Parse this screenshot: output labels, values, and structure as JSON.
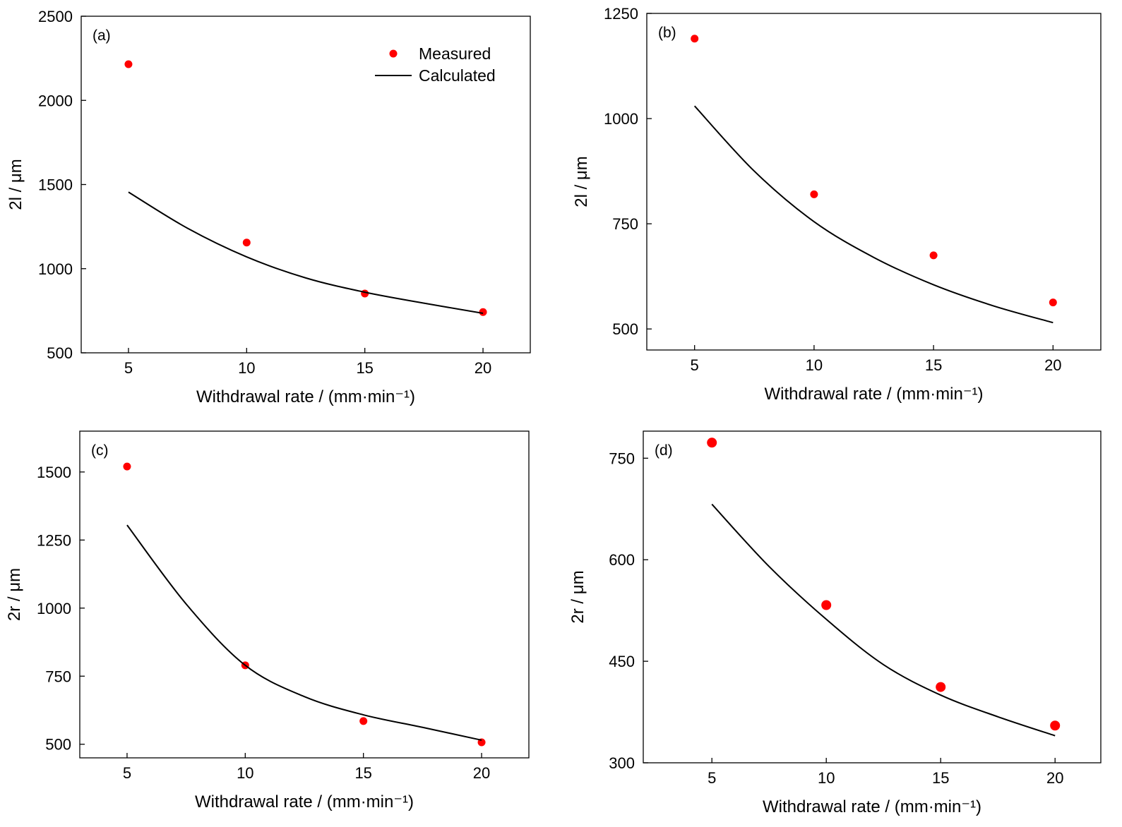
{
  "chart_data": [
    {
      "type": "scatter",
      "panel_label": "(a)",
      "xlabel": "Withdrawal rate / (mm·min⁻¹)",
      "ylabel": "2l / μm",
      "xlim": [
        3,
        22
      ],
      "ylim": [
        500,
        2500
      ],
      "xticks": [
        5,
        10,
        15,
        20
      ],
      "yticks": [
        500,
        1000,
        1500,
        2000,
        2500
      ],
      "legend": {
        "placement": "top-right",
        "entries": [
          "Measured",
          "Calculated"
        ]
      },
      "series": [
        {
          "name": "Measured",
          "style": "points",
          "color": "#ff0000",
          "x": [
            5,
            10,
            15,
            20
          ],
          "y": [
            2215,
            1155,
            852,
            742
          ]
        },
        {
          "name": "Calculated",
          "style": "line",
          "color": "#000000",
          "x": [
            5,
            7.5,
            10,
            12.5,
            15,
            17.5,
            20
          ],
          "y": [
            1455,
            1240,
            1070,
            945,
            860,
            795,
            735
          ]
        }
      ]
    },
    {
      "type": "scatter",
      "panel_label": "(b)",
      "xlabel": "Withdrawal rate / (mm·min⁻¹)",
      "ylabel": "2l / μm",
      "xlim": [
        3,
        22
      ],
      "ylim": [
        450,
        1250
      ],
      "xticks": [
        5,
        10,
        15,
        20
      ],
      "yticks": [
        500,
        750,
        1000,
        1250
      ],
      "series": [
        {
          "name": "Measured",
          "style": "points",
          "color": "#ff0000",
          "x": [
            5,
            10,
            15,
            20
          ],
          "y": [
            1190,
            820,
            675,
            563
          ]
        },
        {
          "name": "Calculated",
          "style": "line",
          "color": "#000000",
          "x": [
            5,
            7.5,
            10,
            12.5,
            15,
            17.5,
            20
          ],
          "y": [
            1030,
            875,
            755,
            670,
            605,
            555,
            515
          ]
        }
      ]
    },
    {
      "type": "scatter",
      "panel_label": "(c)",
      "xlabel": "Withdrawal rate / (mm·min⁻¹)",
      "ylabel": "2r / μm",
      "xlim": [
        3,
        22
      ],
      "ylim": [
        450,
        1650
      ],
      "xticks": [
        5,
        10,
        15,
        20
      ],
      "yticks": [
        500,
        750,
        1000,
        1250,
        1500
      ],
      "series": [
        {
          "name": "Measured",
          "style": "points",
          "color": "#ff0000",
          "x": [
            5,
            10,
            15,
            20
          ],
          "y": [
            1520,
            790,
            585,
            507
          ]
        },
        {
          "name": "Calculated",
          "style": "line",
          "color": "#000000",
          "x": [
            5,
            7.5,
            10,
            12.5,
            15,
            17.5,
            20
          ],
          "y": [
            1305,
            1015,
            790,
            675,
            608,
            562,
            515
          ]
        }
      ]
    },
    {
      "type": "scatter",
      "panel_label": "(d)",
      "xlabel": "Withdrawal rate / (mm·min⁻¹)",
      "ylabel": "2r / μm",
      "xlim": [
        2,
        22
      ],
      "ylim": [
        300,
        790
      ],
      "xticks": [
        5,
        10,
        15,
        20
      ],
      "yticks": [
        300,
        450,
        600,
        750
      ],
      "series": [
        {
          "name": "Measured",
          "style": "points",
          "color": "#ff0000",
          "x": [
            5,
            10,
            15,
            20
          ],
          "y": [
            773,
            533,
            412,
            355
          ]
        },
        {
          "name": "Calculated",
          "style": "line",
          "color": "#000000",
          "x": [
            5,
            7.5,
            10,
            12.5,
            15,
            17.5,
            20
          ],
          "y": [
            682,
            590,
            512,
            445,
            400,
            368,
            340
          ]
        }
      ]
    }
  ]
}
